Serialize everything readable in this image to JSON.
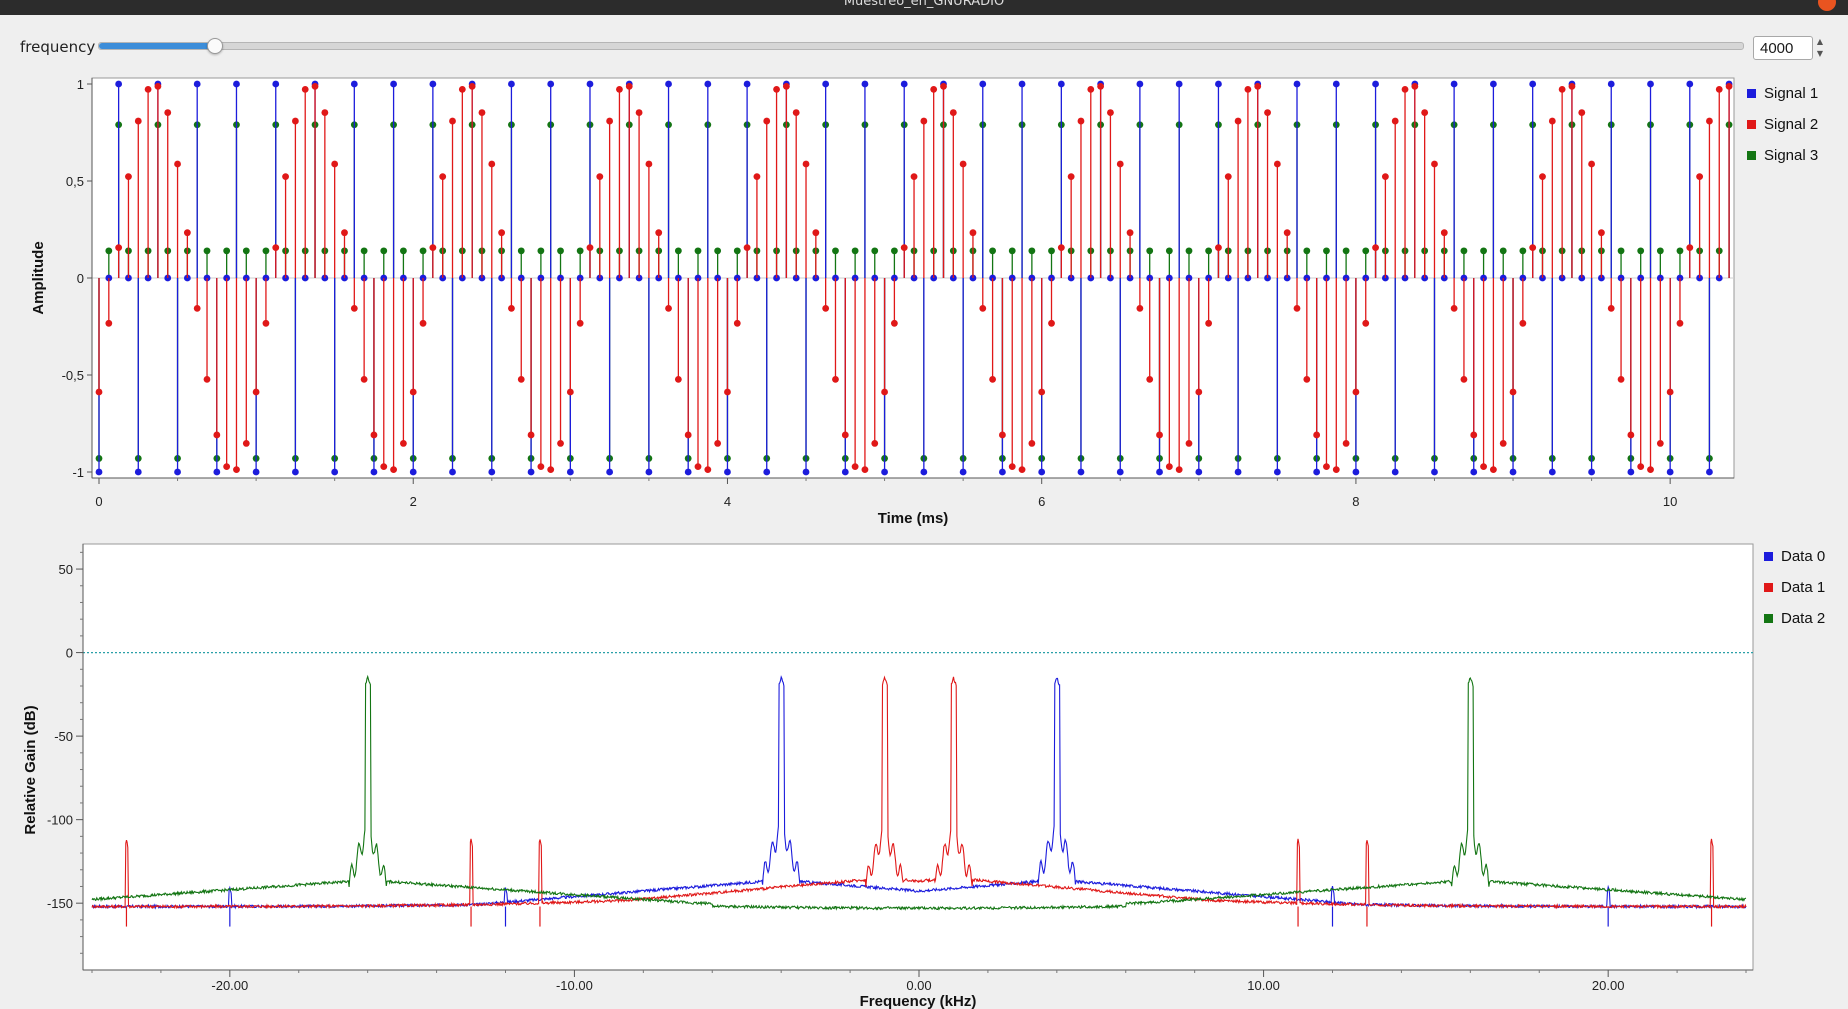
{
  "window": {
    "title": "Muestreo_en_GNURADIO"
  },
  "controls": {
    "frequency_label": "frequency",
    "frequency_value": "4000",
    "slider_fraction": 0.07
  },
  "colors": {
    "series_blue": "#1c1cdc",
    "series_red": "#e01818",
    "series_green": "#137513",
    "slider_fill": "#3c8dd9",
    "reference_line": "#2aa0a8"
  },
  "chart_data": [
    {
      "type": "scatter",
      "style": "stem",
      "xlabel": "Time (ms)",
      "ylabel": "Amplitude",
      "xlim": [
        0,
        10.4
      ],
      "ylim": [
        -1,
        1
      ],
      "x_ticks": [
        "0",
        "2",
        "4",
        "6",
        "8",
        "10"
      ],
      "y_ticks": [
        "1",
        "0,5",
        "0",
        "-0,5",
        "-1"
      ],
      "grid": false,
      "legend_position": "right",
      "sample_period_ms": 0.0625,
      "series": [
        {
          "name": "Signal 1",
          "color": "#1c1cdc",
          "tone_khz": 4,
          "amplitude": 1
        },
        {
          "name": "Signal 2",
          "color": "#e01818",
          "tone_khz": 1,
          "amplitude": 1
        },
        {
          "name": "Signal 3",
          "color": "#137513",
          "tone_khz": 16,
          "amplitude": 1
        }
      ]
    },
    {
      "type": "line",
      "xlabel": "Frequency (kHz)",
      "ylabel": "Relative Gain (dB)",
      "xlim": [
        -24,
        24
      ],
      "ylim": [
        -190,
        65
      ],
      "x_ticks": [
        "-20.00",
        "-10.00",
        "0.00",
        "10.00",
        "20.00"
      ],
      "y_ticks": [
        "50",
        "0",
        "-50",
        "-100",
        "-150"
      ],
      "reference_line_db": 0,
      "grid": false,
      "legend_position": "right",
      "series": [
        {
          "name": "Data 0",
          "color": "#1c1cdc",
          "peaks_khz": [
            -4,
            4
          ],
          "peak_db": -15,
          "peak_base_db": -108,
          "hump_centers_khz": [
            -4,
            4
          ],
          "hump_db": -137,
          "floor_db": -152,
          "floor_at_center_db": -143,
          "spurs_khz": [
            -20,
            -12,
            12,
            20
          ]
        },
        {
          "name": "Data 1",
          "color": "#e01818",
          "peaks_khz": [
            -1,
            1
          ],
          "peak_db": -15,
          "peak_base_db": -110,
          "hump_centers_khz": [
            -1,
            1
          ],
          "hump_db": -136,
          "floor_db": -152,
          "floor_at_center_db": -143,
          "spurs_khz": [
            -23,
            -13,
            -11,
            11,
            13,
            23
          ]
        },
        {
          "name": "Data 2",
          "color": "#137513",
          "peaks_khz": [
            -16,
            16
          ],
          "peak_db": -15,
          "peak_base_db": -110,
          "hump_centers_khz": [
            -16,
            16
          ],
          "hump_db": -137,
          "floor_db": -150,
          "floor_at_center_db": -153,
          "spurs_khz": []
        }
      ]
    }
  ]
}
